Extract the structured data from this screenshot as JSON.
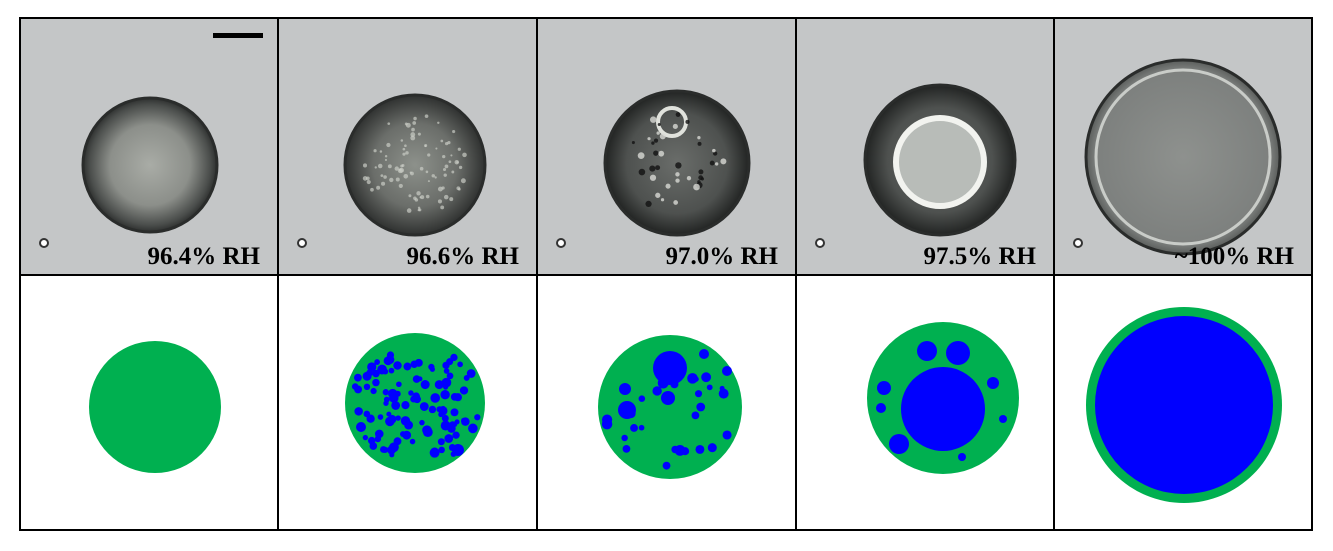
{
  "figure": {
    "panels": [
      {
        "label": "96.4% RH",
        "state": "homogeneous"
      },
      {
        "label": "96.6% RH",
        "state": "many-small-inclusions"
      },
      {
        "label": "97.0% RH",
        "state": "fewer-larger-inclusions"
      },
      {
        "label": "97.5% RH",
        "state": "core-shell"
      },
      {
        "label": "~100% RH",
        "state": "thin-shell"
      }
    ],
    "colors": {
      "organic_phase": "#00b050",
      "aqueous_phase": "#0000ff",
      "background": "#c4c6c7"
    },
    "scale_bar": true
  }
}
